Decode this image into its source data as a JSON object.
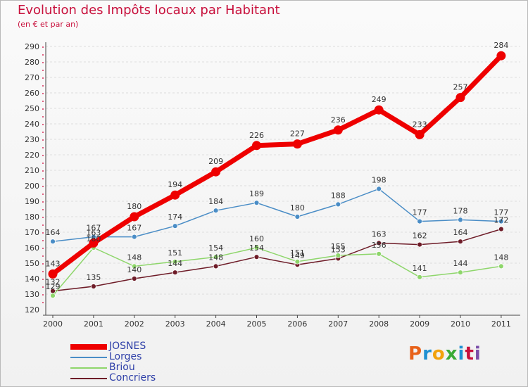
{
  "header": {
    "title": "Evolution des Impôts locaux par Habitant",
    "subtitle": "(en € et par an)"
  },
  "colors": {
    "title": "#c8103c",
    "axis": "#333333",
    "grid": "#dddddd",
    "legend_text": "#2e3fa8"
  },
  "logo": {
    "text": "Proxiti",
    "letters": [
      "P",
      "r",
      "o",
      "x",
      "i",
      "t",
      "i"
    ],
    "colors": [
      "#e8621a",
      "#1e90d2",
      "#f2a20c",
      "#3aaa35",
      "#1e90d2",
      "#c8103c",
      "#7a4ca8"
    ]
  },
  "chart_data": {
    "type": "line",
    "title": "Evolution des Impôts locaux par Habitant",
    "subtitle": "(en € et par an)",
    "xlabel": "",
    "ylabel": "",
    "categories": [
      "2000",
      "2001",
      "2002",
      "2003",
      "2004",
      "2005",
      "2006",
      "2007",
      "2008",
      "2009",
      "2010",
      "2011"
    ],
    "ylim": [
      120,
      290
    ],
    "yticks": [
      120,
      130,
      140,
      150,
      160,
      170,
      180,
      190,
      200,
      210,
      220,
      230,
      240,
      250,
      260,
      270,
      280,
      290
    ],
    "grid": "horizontal-dashed",
    "legend_position": "bottom-left",
    "series": [
      {
        "name": "JOSNES",
        "values": [
          143,
          163,
          180,
          194,
          209,
          226,
          227,
          236,
          249,
          233,
          257,
          284
        ],
        "color": "#ee0000",
        "emphasis": true
      },
      {
        "name": "Lorges",
        "values": [
          164,
          167,
          167,
          174,
          184,
          189,
          180,
          188,
          198,
          177,
          178,
          177
        ],
        "color": "#4a8dc6",
        "emphasis": false
      },
      {
        "name": "Briou",
        "values": [
          129,
          160,
          148,
          151,
          154,
          160,
          151,
          155,
          156,
          141,
          144,
          148
        ],
        "color": "#8ed66b",
        "emphasis": false
      },
      {
        "name": "Concriers",
        "values": [
          132,
          135,
          140,
          144,
          148,
          154,
          149,
          153,
          163,
          162,
          164,
          172
        ],
        "color": "#6e1c28",
        "emphasis": false
      }
    ],
    "data_labels": {
      "JOSNES": [
        "143",
        "163",
        "180",
        "194",
        "209",
        "226",
        "227",
        "236",
        "249",
        "233",
        "257",
        "284"
      ],
      "Lorges": [
        "164",
        "167",
        "167",
        "174",
        "184",
        "189",
        "180",
        "188",
        "198",
        "177",
        "178",
        "177"
      ],
      "Briou": [
        "129",
        "160",
        "148",
        "151",
        "154",
        "160",
        "151",
        "155",
        "156",
        "141",
        "144",
        "148"
      ],
      "Concriers": [
        "132",
        "135",
        "140",
        "144",
        "148",
        "154",
        "149",
        "153",
        "163",
        "162",
        "164",
        "172"
      ]
    }
  }
}
